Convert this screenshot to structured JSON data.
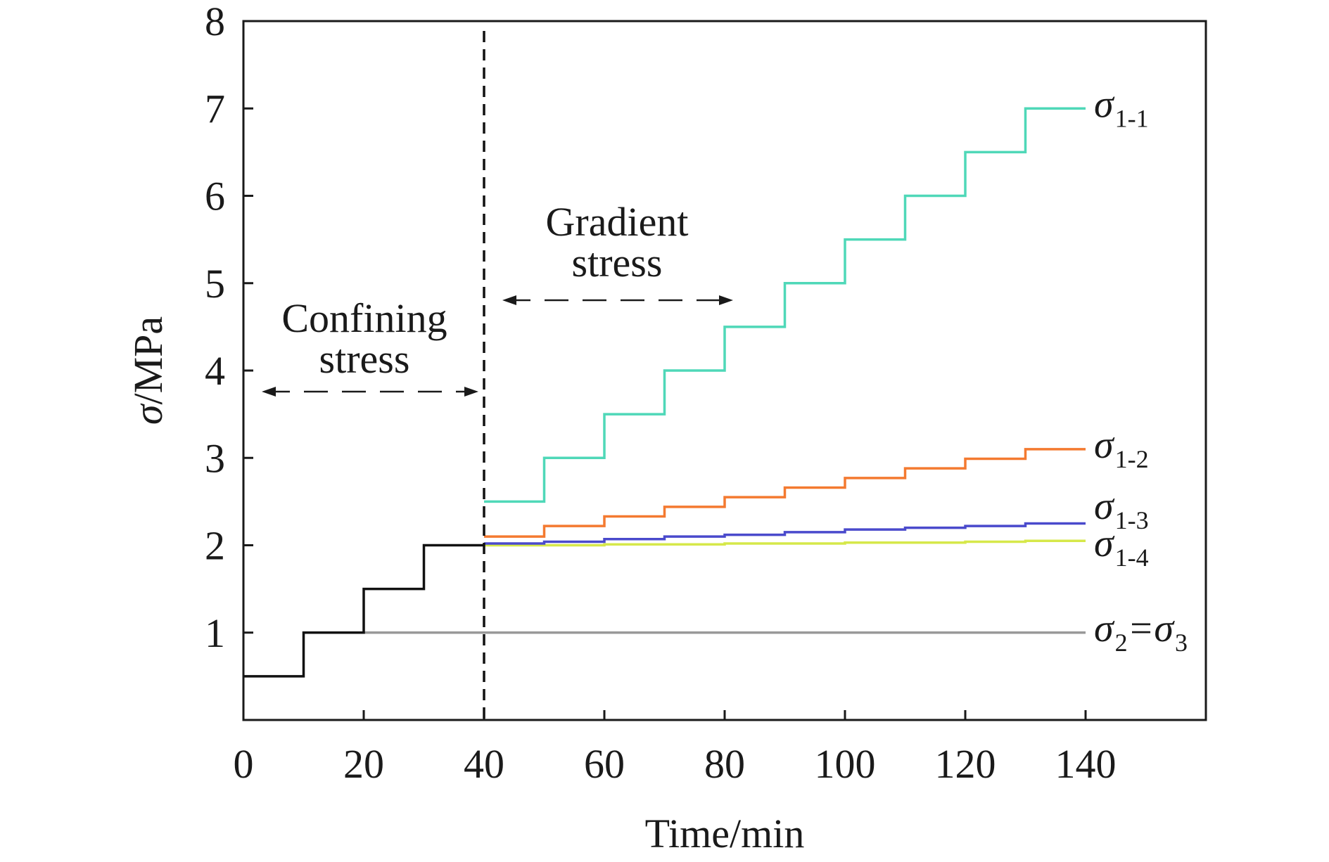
{
  "chart_data": {
    "type": "line",
    "step": true,
    "xlabel": "Time/min",
    "ylabel_symbol": "σ",
    "ylabel_unit": "/MPa",
    "xlim": [
      0,
      160
    ],
    "ylim": [
      0,
      8
    ],
    "xticks": [
      0,
      20,
      40,
      60,
      80,
      100,
      120,
      140
    ],
    "yticks": [
      1,
      2,
      3,
      4,
      5,
      6,
      7,
      8
    ],
    "grid": false,
    "confining_phase": {
      "x": [
        0,
        10,
        10,
        20,
        20,
        30,
        30,
        40
      ],
      "y": [
        0.5,
        0.5,
        1.0,
        1.0,
        1.5,
        1.5,
        2.0,
        2.0
      ],
      "color": "#111111"
    },
    "series": [
      {
        "id": "s11",
        "name_symbol": "σ",
        "name_sub": "1-1",
        "x": [
          40,
          50,
          60,
          70,
          80,
          90,
          100,
          110,
          120,
          130,
          140
        ],
        "y": [
          2.5,
          3.0,
          3.5,
          4.0,
          4.5,
          5.0,
          5.5,
          6.0,
          6.5,
          7.0,
          7.0
        ],
        "color": "#4fd8b8"
      },
      {
        "id": "s12",
        "name_symbol": "σ",
        "name_sub": "1-2",
        "x": [
          40,
          50,
          60,
          70,
          80,
          90,
          100,
          110,
          120,
          130,
          140
        ],
        "y": [
          2.1,
          2.22,
          2.33,
          2.44,
          2.55,
          2.66,
          2.77,
          2.88,
          2.99,
          3.1,
          3.1
        ],
        "color": "#f47a30"
      },
      {
        "id": "s13",
        "name_symbol": "σ",
        "name_sub": "1-3",
        "x": [
          40,
          50,
          60,
          70,
          80,
          90,
          100,
          110,
          120,
          130,
          140
        ],
        "y": [
          2.02,
          2.04,
          2.07,
          2.1,
          2.12,
          2.15,
          2.18,
          2.2,
          2.22,
          2.25,
          2.25
        ],
        "color": "#4a4acc"
      },
      {
        "id": "s14",
        "name_symbol": "σ",
        "name_sub": "1-4",
        "x": [
          40,
          50,
          60,
          70,
          80,
          90,
          100,
          110,
          120,
          130,
          140
        ],
        "y": [
          2.0,
          2.0,
          2.01,
          2.01,
          2.02,
          2.02,
          2.03,
          2.03,
          2.04,
          2.05,
          2.05
        ],
        "color": "#d6e84a"
      },
      {
        "id": "s23",
        "name_symbol": "σ",
        "name_sub": "2",
        "name_eq": "=",
        "name_symbol2": "σ",
        "name_sub2": "3",
        "x": [
          20,
          140
        ],
        "y": [
          1.0,
          1.0
        ],
        "color": "#999999"
      }
    ],
    "phase_divider_x": 40,
    "annotations": {
      "confining_line1": "Confining",
      "confining_line2": "stress",
      "gradient_line1": "Gradient",
      "gradient_line2": "stress"
    }
  }
}
